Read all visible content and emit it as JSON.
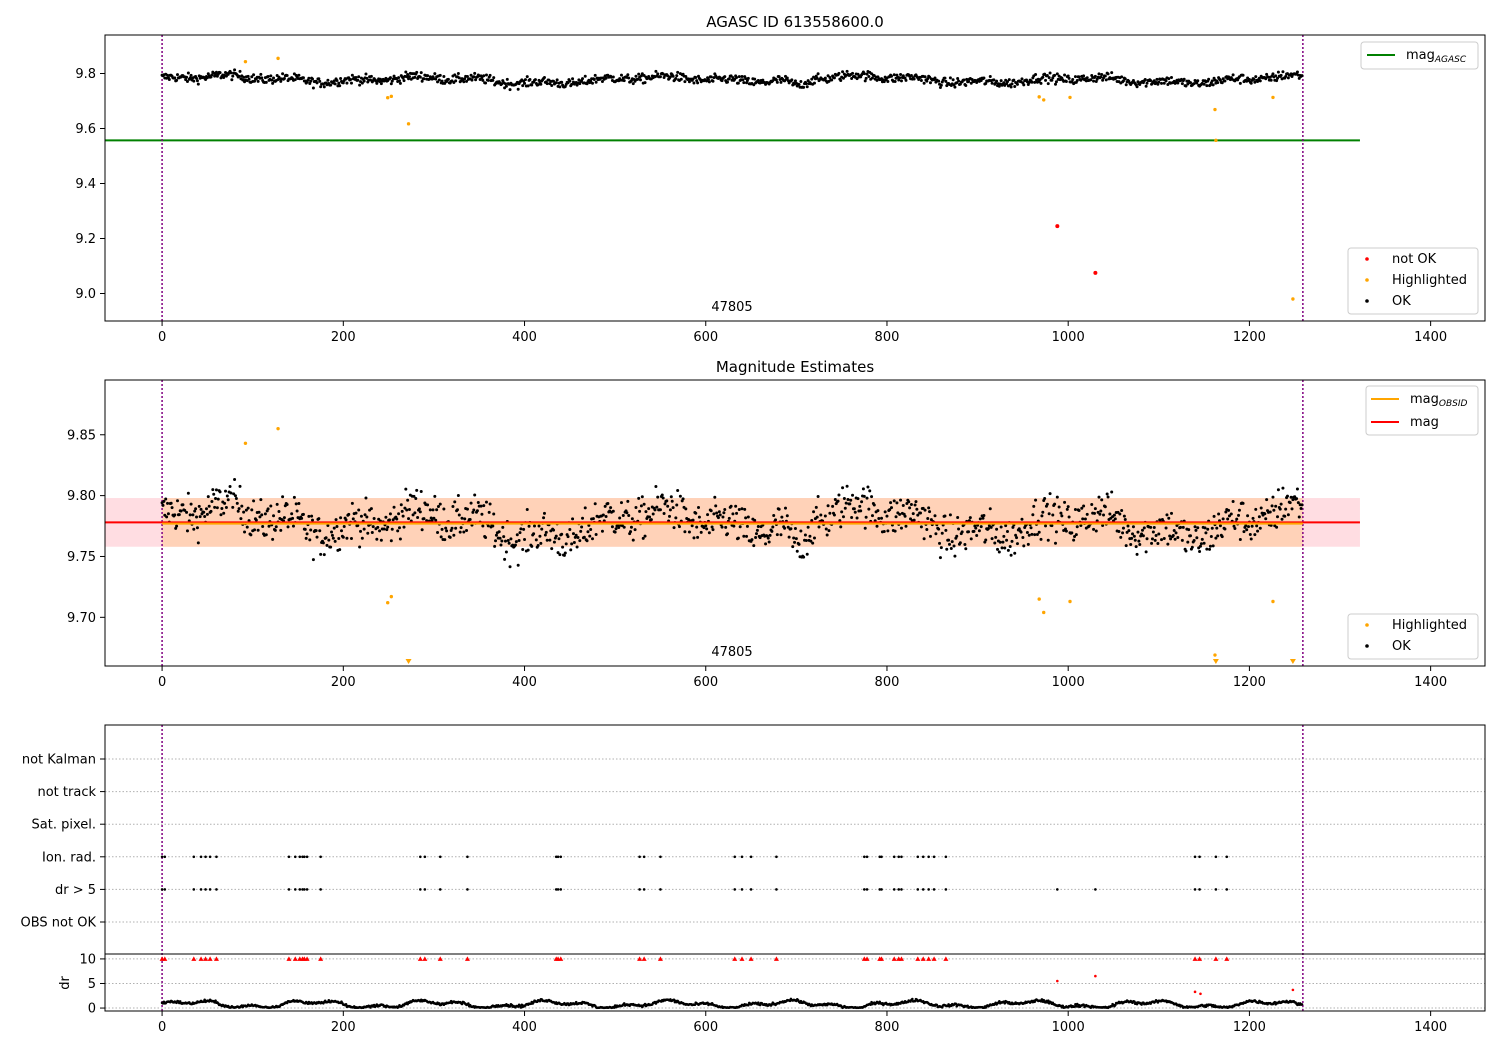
{
  "chart_data": [
    {
      "type": "scatter",
      "title": "AGASC ID 613558600.0",
      "annotation": "47805",
      "xlim": [
        -63,
        1460
      ],
      "ylim": [
        8.9,
        9.94
      ],
      "xticks": [
        0,
        200,
        400,
        600,
        800,
        1000,
        1200,
        1400
      ],
      "yticks": [
        9.0,
        9.2,
        9.4,
        9.6,
        9.8
      ],
      "ytick_labels": [
        "9.0",
        "9.2",
        "9.4",
        "9.6",
        "9.8"
      ],
      "vlines": [
        0,
        1259
      ],
      "hline": {
        "name": "mag",
        "name_sub": "AGASC",
        "value": 9.557,
        "x0": -63,
        "x1": 1322,
        "color": "#008000"
      },
      "ok": {
        "name": "OK",
        "color": "#000000",
        "n": 1259,
        "base": 9.778,
        "amp": 0.009,
        "noise": 0.02
      },
      "highlighted": {
        "name": "Highlighted",
        "color": "#ffa500",
        "points": [
          [
            92,
            9.843
          ],
          [
            128,
            9.855
          ],
          [
            249,
            9.712
          ],
          [
            253,
            9.717
          ],
          [
            272,
            9.617
          ],
          [
            968,
            9.715
          ],
          [
            973,
            9.704
          ],
          [
            1002,
            9.713
          ],
          [
            1162,
            9.669
          ],
          [
            1163,
            9.557
          ],
          [
            1226,
            9.713
          ],
          [
            1248,
            8.98
          ]
        ]
      },
      "not_ok": {
        "name": "not OK",
        "color": "#ff0000",
        "points": [
          [
            988,
            9.245
          ],
          [
            1030,
            9.075
          ]
        ]
      },
      "legend_lines": "top-right",
      "legend_points": "bottom-right"
    },
    {
      "type": "scatter",
      "title": "Magnitude Estimates",
      "annotation": "47805",
      "xlim": [
        -63,
        1460
      ],
      "ylim": [
        9.66,
        9.895
      ],
      "xticks": [
        0,
        200,
        400,
        600,
        800,
        1000,
        1200,
        1400
      ],
      "yticks": [
        9.7,
        9.75,
        9.8,
        9.85
      ],
      "ytick_labels": [
        "9.70",
        "9.75",
        "9.80",
        "9.85"
      ],
      "vlines": [
        0,
        1259
      ],
      "mag_line": {
        "name": "mag",
        "value": 9.778,
        "color": "#ff0000"
      },
      "mag_obsid_line": {
        "name": "mag",
        "name_sub": "OBSID",
        "value": 9.777,
        "color": "#ffa500"
      },
      "band": {
        "lower": 9.758,
        "upper": 9.798,
        "x0": -63,
        "x1": 1322
      },
      "ok": {
        "name": "OK",
        "color": "#000000"
      },
      "highlighted": {
        "name": "Highlighted",
        "color": "#ffa500",
        "points": [
          [
            92,
            9.843
          ],
          [
            128,
            9.855
          ],
          [
            249,
            9.712
          ],
          [
            253,
            9.717
          ],
          [
            968,
            9.715
          ],
          [
            973,
            9.704
          ],
          [
            1002,
            9.713
          ],
          [
            1162,
            9.669
          ],
          [
            1226,
            9.713
          ]
        ]
      },
      "offscale_markers": [
        272,
        1163,
        1248
      ],
      "legend_lines": "top-right",
      "legend_points": "bottom-right"
    },
    {
      "type": "scatter",
      "title": "",
      "xlim": [
        -63,
        1460
      ],
      "vlines": [
        0,
        1259
      ],
      "flag_rows": [
        "not Kalman",
        "not track",
        "Sat. pixel.",
        "Ion. rad.",
        "dr > 5",
        "OBS not OK"
      ],
      "ion_rad_x": [
        0,
        3,
        35,
        43,
        48,
        53,
        60,
        140,
        147,
        152,
        155,
        157,
        160,
        175,
        285,
        290,
        307,
        337,
        435,
        437,
        440,
        527,
        532,
        550,
        632,
        640,
        650,
        678,
        775,
        778,
        792,
        794,
        808,
        813,
        816,
        834,
        840,
        846,
        852,
        865,
        1140,
        1145,
        1163,
        1175
      ],
      "dr_gt5_extra_x": [
        988,
        1030
      ],
      "dr_axis": {
        "label": "dr",
        "ylim": [
          -0.6,
          11
        ],
        "yticks": [
          0,
          5,
          10
        ],
        "ytick_labels": [
          "0",
          "5",
          "10"
        ]
      },
      "dr_clipped_value": 10,
      "dr_outliers": [
        [
          988,
          5.5
        ],
        [
          1030,
          6.5
        ],
        [
          1140,
          3.3
        ],
        [
          1146,
          2.9
        ],
        [
          1248,
          3.7
        ]
      ],
      "xticks": [
        0,
        200,
        400,
        600,
        800,
        1000,
        1200,
        1400
      ]
    }
  ]
}
